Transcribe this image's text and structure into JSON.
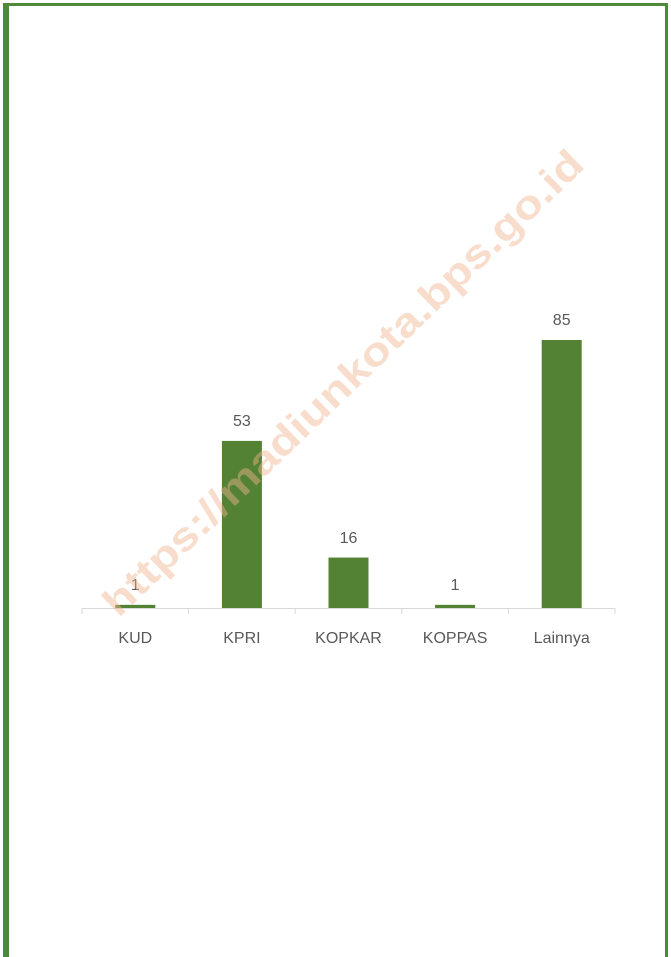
{
  "chart_data": {
    "type": "bar",
    "categories": [
      "KUD",
      "KPRI",
      "KOPKAR",
      "KOPPAS",
      "Lainnya"
    ],
    "values": [
      1,
      53,
      16,
      1,
      85
    ],
    "color": "#548235",
    "watermark": "https://madiunkota.bps.go.id"
  }
}
